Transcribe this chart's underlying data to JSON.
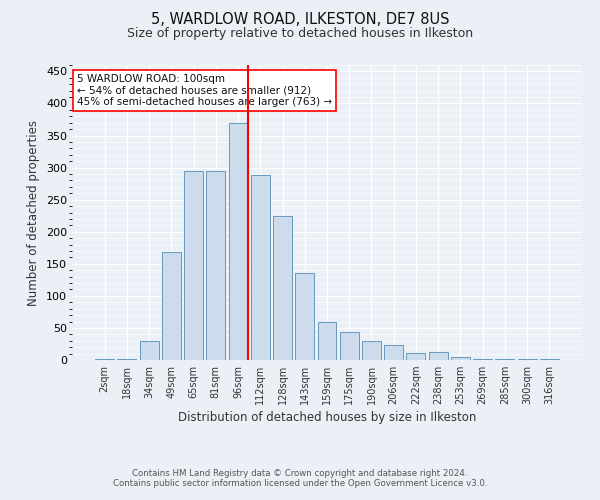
{
  "title1": "5, WARDLOW ROAD, ILKESTON, DE7 8US",
  "title2": "Size of property relative to detached houses in Ilkeston",
  "xlabel": "Distribution of detached houses by size in Ilkeston",
  "ylabel": "Number of detached properties",
  "categories": [
    "2sqm",
    "18sqm",
    "34sqm",
    "49sqm",
    "65sqm",
    "81sqm",
    "96sqm",
    "112sqm",
    "128sqm",
    "143sqm",
    "159sqm",
    "175sqm",
    "190sqm",
    "206sqm",
    "222sqm",
    "238sqm",
    "253sqm",
    "269sqm",
    "285sqm",
    "300sqm",
    "316sqm"
  ],
  "values": [
    2,
    2,
    29,
    168,
    295,
    295,
    370,
    289,
    225,
    135,
    60,
    44,
    29,
    23,
    11,
    12,
    4,
    2,
    1,
    2,
    2
  ],
  "bar_color": "#ccdcec",
  "bar_edge_color": "#6699bb",
  "vline_color": "red",
  "annotation_lines": [
    "5 WARDLOW ROAD: 100sqm",
    "← 54% of detached houses are smaller (912)",
    "45% of semi-detached houses are larger (763) →"
  ],
  "ylim": [
    0,
    460
  ],
  "yticks": [
    0,
    50,
    100,
    150,
    200,
    250,
    300,
    350,
    400,
    450
  ],
  "footer1": "Contains HM Land Registry data © Crown copyright and database right 2024.",
  "footer2": "Contains public sector information licensed under the Open Government Licence v3.0.",
  "bg_color": "#eaf0f6",
  "plot_bg_color": "#eaf0f6"
}
